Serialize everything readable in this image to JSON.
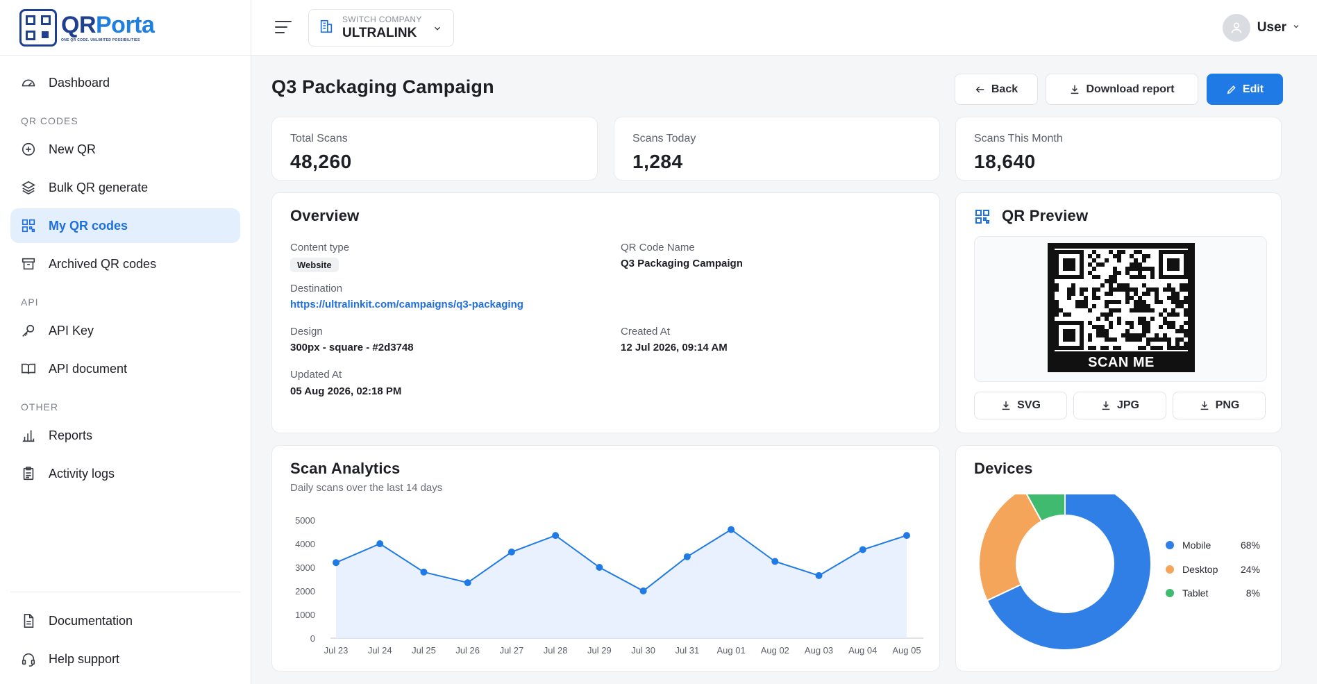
{
  "brand": {
    "name_part1": "QR",
    "name_part2": "Porta",
    "tagline": "ONE QR CODE. UNLIMITED POSSIBILITIES"
  },
  "sidebar": {
    "dashboard": "Dashboard",
    "section_qr": "QR CODES",
    "new_qr": "New QR",
    "bulk_qr": "Bulk QR generate",
    "my_qr": "My QR codes",
    "archived_qr": "Archived QR codes",
    "section_api": "API",
    "api_key": "API Key",
    "api_document": "API document",
    "section_other": "OTHER",
    "reports": "Reports",
    "activity_logs": "Activity logs",
    "documentation": "Documentation",
    "help_support": "Help support"
  },
  "topbar": {
    "company_caption": "SWITCH COMPANY",
    "company_name": "ULTRALINK",
    "user_name": "User"
  },
  "page": {
    "title": "Q3 Packaging Campaign",
    "back_label": "Back",
    "download_label": "Download report",
    "edit_label": "Edit"
  },
  "stats": {
    "total_label": "Total Scans",
    "total_value": "48,260",
    "today_label": "Scans Today",
    "today_value": "1,284",
    "month_label": "Scans This Month",
    "month_value": "18,640"
  },
  "overview": {
    "title": "Overview",
    "content_type_label": "Content type",
    "content_type_value": "Website",
    "qr_name_label": "QR Code Name",
    "qr_name_value": "Q3 Packaging Campaign",
    "destination_label": "Destination",
    "destination_value": "https://ultralinkit.com/campaigns/q3-packaging",
    "design_label": "Design",
    "design_value": "300px - square - #2d3748",
    "created_label": "Created At",
    "created_value": "12 Jul 2026, 09:14 AM",
    "updated_label": "Updated At",
    "updated_value": "05 Aug 2026, 02:18 PM"
  },
  "qr_preview": {
    "title": "QR Preview",
    "caption": "SCAN ME",
    "svg_label": "SVG",
    "jpg_label": "JPG",
    "png_label": "PNG"
  },
  "analytics": {
    "title": "Scan Analytics",
    "subtitle": "Daily scans over the last 14 days"
  },
  "devices": {
    "title": "Devices"
  },
  "chart_data": [
    {
      "type": "area",
      "title": "Scan Analytics",
      "subtitle": "Daily scans over the last 14 days",
      "x": [
        "Jul 23",
        "Jul 24",
        "Jul 25",
        "Jul 26",
        "Jul 27",
        "Jul 28",
        "Jul 29",
        "Jul 30",
        "Jul 31",
        "Aug 01",
        "Aug 02",
        "Aug 03",
        "Aug 04",
        "Aug 05"
      ],
      "values": [
        3200,
        4000,
        2800,
        2350,
        3650,
        4350,
        3000,
        2000,
        3450,
        4600,
        3250,
        2650,
        3750,
        4350
      ],
      "ylim": [
        0,
        5000
      ],
      "yticks": [
        "0",
        "1000",
        "2000",
        "3000",
        "4000",
        "5000"
      ],
      "grid": false,
      "color": "#1f7ae6"
    },
    {
      "type": "pie",
      "title": "Devices",
      "donut": true,
      "legend": "right",
      "labels": [
        "Mobile",
        "Desktop",
        "Tablet"
      ],
      "values": [
        68,
        24,
        8
      ],
      "value_labels": [
        "68%",
        "24%",
        "8%"
      ],
      "colors": [
        "#2f7fe6",
        "#f5a55a",
        "#3fba6e"
      ]
    }
  ]
}
